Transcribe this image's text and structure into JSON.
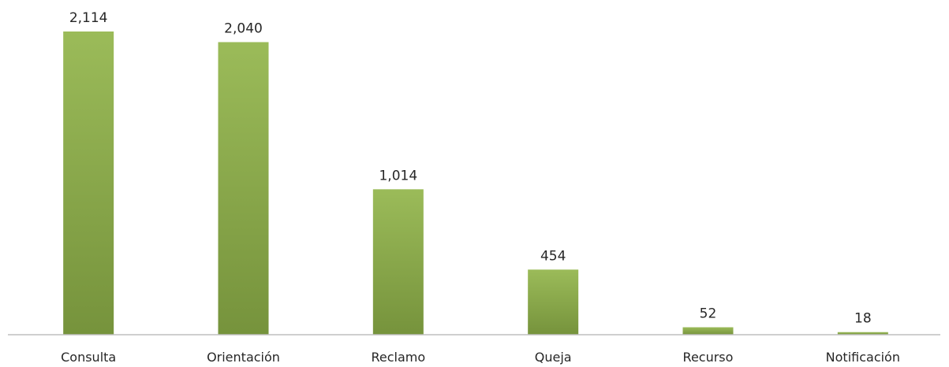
{
  "chart_data": {
    "type": "bar",
    "categories": [
      "Consulta",
      "Orientación",
      "Reclamo",
      "Queja",
      "Recurso",
      "Notificación"
    ],
    "values": [
      2114,
      2040,
      1014,
      454,
      52,
      18
    ],
    "value_labels": [
      "2,114",
      "2,040",
      "1,014",
      "454",
      "52",
      "18"
    ],
    "title": "",
    "xlabel": "",
    "ylabel": "",
    "ylim": [
      0,
      2114
    ],
    "grid": false,
    "legend": "none",
    "colors": {
      "bar_top": "#9bbb59",
      "bar_bottom": "#76933c",
      "axis": "#bfbfbf",
      "text": "#262626"
    }
  }
}
